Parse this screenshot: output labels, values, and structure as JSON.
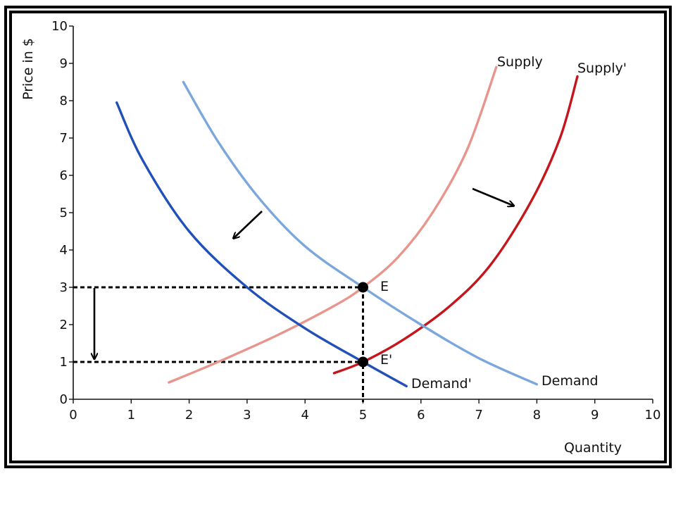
{
  "chart_data": {
    "type": "line",
    "xlabel": "Quantity",
    "ylabel": "Price in $",
    "xlim": [
      0,
      10
    ],
    "ylim": [
      0,
      10
    ],
    "xticks": [
      "0",
      "1",
      "2",
      "3",
      "4",
      "5",
      "6",
      "7",
      "8",
      "9",
      "10"
    ],
    "yticks": [
      "0",
      "1",
      "2",
      "3",
      "4",
      "5",
      "6",
      "7",
      "8",
      "9",
      "10"
    ],
    "grid": false,
    "series": [
      {
        "name": "Supply",
        "color": "#e8958e",
        "x": [
          1.65,
          2.5,
          3.5,
          4.5,
          5.0,
          5.6,
          6.2,
          6.8,
          7.3
        ],
        "y": [
          0.45,
          1.0,
          1.7,
          2.5,
          3.0,
          3.8,
          5.0,
          6.7,
          8.9
        ]
      },
      {
        "name": "Supply'",
        "color": "#c4161c",
        "x": [
          4.5,
          5.0,
          5.7,
          6.5,
          7.2,
          7.9,
          8.4,
          8.7
        ],
        "y": [
          0.7,
          1.0,
          1.6,
          2.5,
          3.6,
          5.3,
          7.0,
          8.65
        ]
      },
      {
        "name": "Demand",
        "color": "#7ba7dc",
        "x": [
          1.9,
          2.5,
          3.2,
          4.0,
          5.0,
          6.0,
          7.0,
          8.0
        ],
        "y": [
          8.5,
          6.9,
          5.4,
          4.1,
          3.0,
          2.0,
          1.1,
          0.4
        ]
      },
      {
        "name": "Demand'",
        "color": "#2150b8",
        "x": [
          0.75,
          1.2,
          2.0,
          3.0,
          4.0,
          5.0,
          5.75
        ],
        "y": [
          7.95,
          6.4,
          4.5,
          3.0,
          1.9,
          1.0,
          0.35
        ]
      }
    ],
    "points": [
      {
        "label": "E",
        "x": 5,
        "y": 3
      },
      {
        "label": "E'",
        "x": 5,
        "y": 1
      }
    ]
  }
}
